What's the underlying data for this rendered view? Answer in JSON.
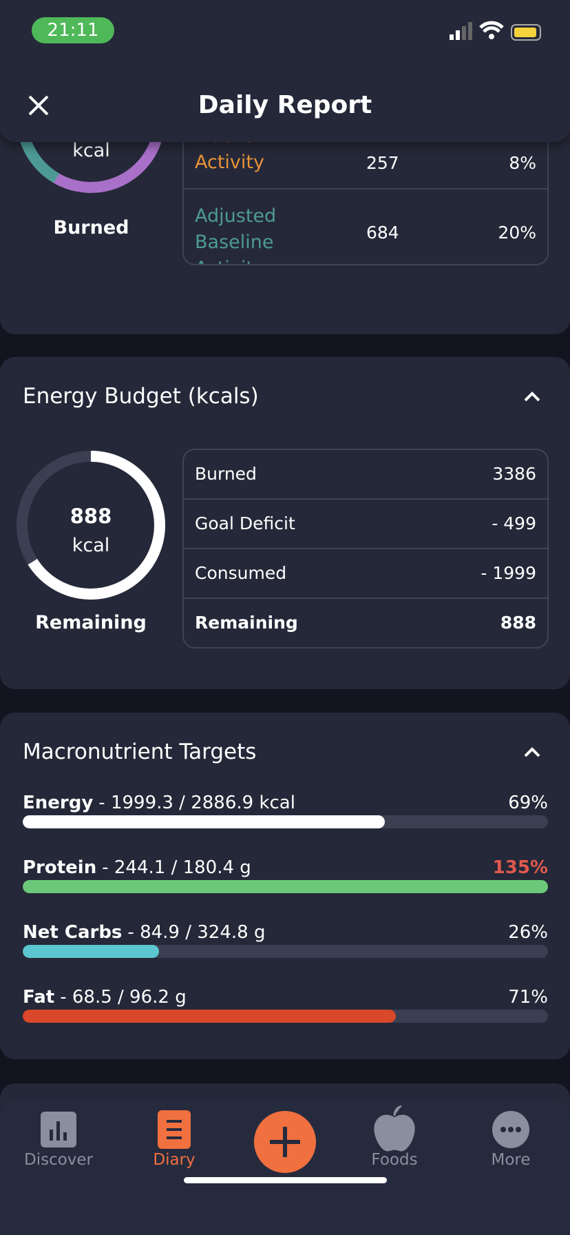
{
  "status_bar": {
    "time": "21:11"
  },
  "header": {
    "title": "Daily Report"
  },
  "burned_card": {
    "donut_unit": "kcal",
    "donut_caption": "Burned",
    "rows": [
      {
        "label": "Tracker Activity",
        "value": "257",
        "percent": "8%",
        "color": "#e8923a"
      },
      {
        "label": "Adjusted Baseline Activity",
        "value": "684",
        "percent": "20%",
        "color": "#4d9a95"
      }
    ]
  },
  "energy_budget": {
    "title": "Energy Budget (kcals)",
    "donut_value": "888",
    "donut_unit": "kcal",
    "donut_caption": "Remaining",
    "rows": [
      {
        "label": "Burned",
        "value": "3386"
      },
      {
        "label": "Goal Deficit",
        "value": "- 499"
      },
      {
        "label": "Consumed",
        "value": "- 1999"
      },
      {
        "label": "Remaining",
        "value": "888",
        "bold": true
      }
    ]
  },
  "macros": {
    "title": "Macronutrient Targets",
    "rows": [
      {
        "name": "Energy",
        "detail": "- 1999.3 / 2886.9 kcal",
        "percent": 69,
        "percent_label": "69%",
        "color": "#ffffff",
        "label_color": "#ffffff"
      },
      {
        "name": "Protein",
        "detail": "- 244.1 / 180.4 g",
        "percent": 135,
        "percent_label": "135%",
        "color": "#6cc97a",
        "label_color": "#e05a4e"
      },
      {
        "name": "Net Carbs",
        "detail": "- 84.9 / 324.8 g",
        "percent": 26,
        "percent_label": "26%",
        "color": "#5bc6d0",
        "label_color": "#ffffff"
      },
      {
        "name": "Fat",
        "detail": "- 68.5 / 96.2 g",
        "percent": 71,
        "percent_label": "71%",
        "color": "#d9482a",
        "label_color": "#ffffff"
      }
    ]
  },
  "tab_bar": {
    "tabs": [
      {
        "label": "Discover"
      },
      {
        "label": "Diary",
        "active": true
      },
      {
        "label": "Foods"
      },
      {
        "label": "More"
      }
    ]
  }
}
